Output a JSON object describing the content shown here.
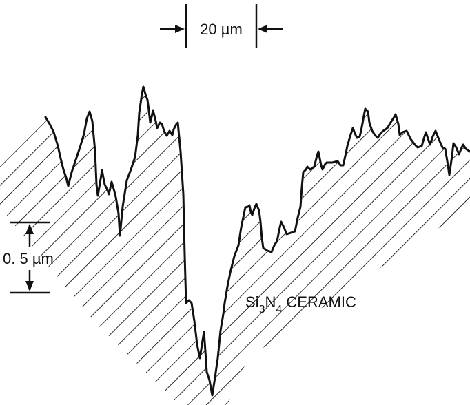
{
  "figure": {
    "scale_horizontal": {
      "value": "20",
      "unit": "µm"
    },
    "scale_vertical": {
      "value": "0. 5",
      "unit": "µm"
    },
    "material": {
      "element1": "Si",
      "sub1": "3",
      "element2": "N",
      "sub2": "4",
      "name": "CERAMIC"
    }
  },
  "colors": {
    "ink": "#111111",
    "background": "#ffffff"
  }
}
